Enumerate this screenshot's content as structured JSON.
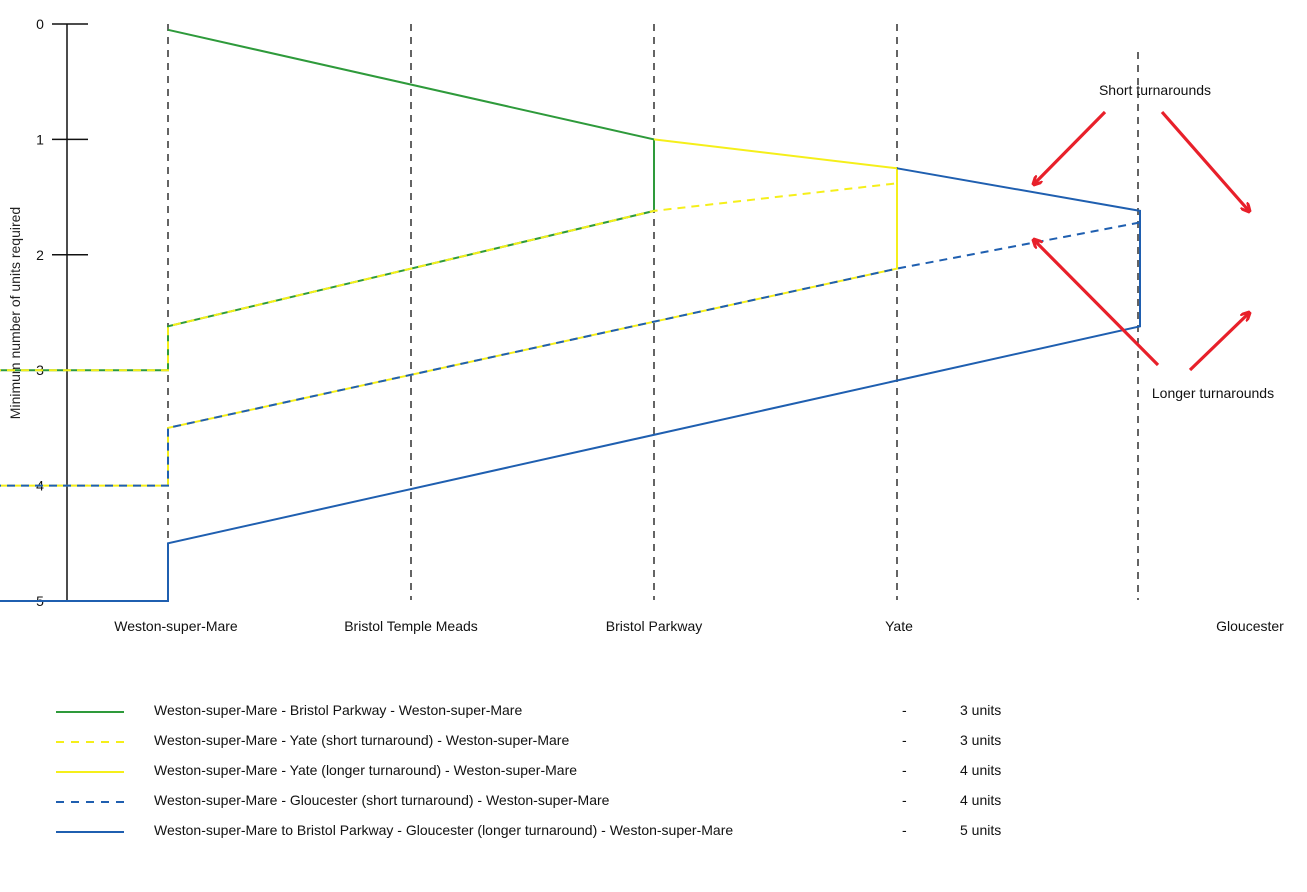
{
  "chart_data": {
    "type": "line",
    "ylabel": "Minimum number of units required",
    "ylim": [
      0,
      5
    ],
    "y_ticks": [
      "0",
      "1",
      "2",
      "3",
      "4",
      "5"
    ],
    "stations": [
      "Weston-super-Mare",
      "Bristol Temple Meads",
      "Bristol Parkway",
      "Yate",
      "Gloucester"
    ],
    "colors": {
      "green": "#2e9a3b",
      "yellow": "#f5ef1a",
      "blue": "#1f5fb0",
      "arrow": "#e8202a"
    },
    "series": [
      {
        "color": "green",
        "dash": false,
        "points": [
          [
            0,
            0.05
          ],
          [
            2.0,
            1.0
          ],
          [
            2.0,
            1.62
          ],
          [
            0,
            2.62
          ],
          [
            0,
            3.0
          ],
          [
            -0.72,
            3.0
          ]
        ]
      },
      {
        "color": "yellow",
        "dash": true,
        "points": [
          [
            -0.72,
            3.0
          ],
          [
            0,
            3.0
          ],
          [
            0,
            2.62
          ],
          [
            2.0,
            1.62
          ],
          [
            3.0,
            1.38
          ]
        ]
      },
      {
        "color": "yellow",
        "dash": false,
        "points": [
          [
            2.0,
            1.0
          ],
          [
            3.0,
            1.25
          ],
          [
            3.0,
            2.12
          ],
          [
            0,
            3.5
          ],
          [
            0,
            4.0
          ],
          [
            -0.72,
            4.0
          ]
        ]
      },
      {
        "color": "blue",
        "dash": true,
        "points": [
          [
            -0.72,
            4.0
          ],
          [
            0,
            4.0
          ],
          [
            0,
            3.5
          ],
          [
            3.0,
            2.12
          ],
          [
            4.0,
            1.72
          ]
        ]
      },
      {
        "color": "blue",
        "dash": false,
        "points": [
          [
            3.0,
            1.25
          ],
          [
            4.0,
            1.62
          ],
          [
            4.0,
            2.62
          ],
          [
            0,
            4.5
          ],
          [
            0,
            5.0
          ],
          [
            -0.72,
            5.0
          ]
        ]
      }
    ],
    "annotations": [
      {
        "text": "Short turnarounds"
      },
      {
        "text": "Longer turnarounds"
      }
    ]
  },
  "legend": [
    {
      "color": "green",
      "dash": false,
      "label": "Weston-super-Mare - Bristol Parkway - Weston-super-Mare",
      "sep": "-",
      "units": "3 units"
    },
    {
      "color": "yellow",
      "dash": true,
      "label": "Weston-super-Mare - Yate (short turnaround) - Weston-super-Mare",
      "sep": "-",
      "units": "3 units"
    },
    {
      "color": "yellow",
      "dash": false,
      "label": "Weston-super-Mare - Yate (longer turnaround) - Weston-super-Mare",
      "sep": "-",
      "units": "4 units"
    },
    {
      "color": "blue",
      "dash": true,
      "label": "Weston-super-Mare - Gloucester (short turnaround) - Weston-super-Mare",
      "sep": "-",
      "units": "4 units"
    },
    {
      "color": "blue",
      "dash": false,
      "label": "Weston-super-Mare to Bristol Parkway - Gloucester (longer turnaround) - Weston-super-Mare",
      "sep": "-",
      "units": "5 units"
    }
  ]
}
